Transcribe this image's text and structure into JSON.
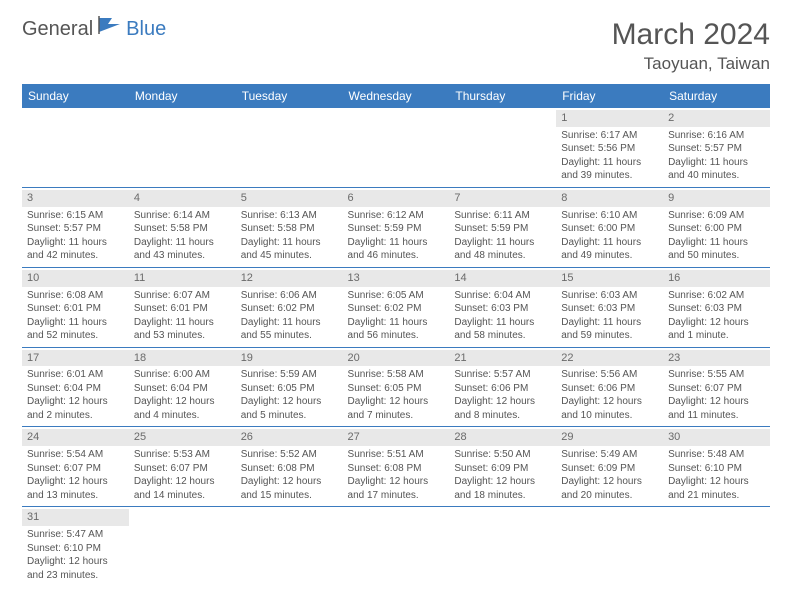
{
  "logo": {
    "general": "General",
    "blue": "Blue"
  },
  "title": "March 2024",
  "location": "Taoyuan, Taiwan",
  "colors": {
    "header_bg": "#3b7bbf",
    "header_fg": "#ffffff",
    "text": "#555555",
    "daynum_bg": "#e8e8e8",
    "row_border": "#3b7bbf"
  },
  "typography": {
    "title_fontsize": 30,
    "location_fontsize": 17,
    "header_fontsize": 12,
    "cell_fontsize": 10
  },
  "weekdays": [
    "Sunday",
    "Monday",
    "Tuesday",
    "Wednesday",
    "Thursday",
    "Friday",
    "Saturday"
  ],
  "weeks": [
    [
      null,
      null,
      null,
      null,
      null,
      {
        "day": "1",
        "sunrise": "Sunrise: 6:17 AM",
        "sunset": "Sunset: 5:56 PM",
        "daylight": "Daylight: 11 hours and 39 minutes."
      },
      {
        "day": "2",
        "sunrise": "Sunrise: 6:16 AM",
        "sunset": "Sunset: 5:57 PM",
        "daylight": "Daylight: 11 hours and 40 minutes."
      }
    ],
    [
      {
        "day": "3",
        "sunrise": "Sunrise: 6:15 AM",
        "sunset": "Sunset: 5:57 PM",
        "daylight": "Daylight: 11 hours and 42 minutes."
      },
      {
        "day": "4",
        "sunrise": "Sunrise: 6:14 AM",
        "sunset": "Sunset: 5:58 PM",
        "daylight": "Daylight: 11 hours and 43 minutes."
      },
      {
        "day": "5",
        "sunrise": "Sunrise: 6:13 AM",
        "sunset": "Sunset: 5:58 PM",
        "daylight": "Daylight: 11 hours and 45 minutes."
      },
      {
        "day": "6",
        "sunrise": "Sunrise: 6:12 AM",
        "sunset": "Sunset: 5:59 PM",
        "daylight": "Daylight: 11 hours and 46 minutes."
      },
      {
        "day": "7",
        "sunrise": "Sunrise: 6:11 AM",
        "sunset": "Sunset: 5:59 PM",
        "daylight": "Daylight: 11 hours and 48 minutes."
      },
      {
        "day": "8",
        "sunrise": "Sunrise: 6:10 AM",
        "sunset": "Sunset: 6:00 PM",
        "daylight": "Daylight: 11 hours and 49 minutes."
      },
      {
        "day": "9",
        "sunrise": "Sunrise: 6:09 AM",
        "sunset": "Sunset: 6:00 PM",
        "daylight": "Daylight: 11 hours and 50 minutes."
      }
    ],
    [
      {
        "day": "10",
        "sunrise": "Sunrise: 6:08 AM",
        "sunset": "Sunset: 6:01 PM",
        "daylight": "Daylight: 11 hours and 52 minutes."
      },
      {
        "day": "11",
        "sunrise": "Sunrise: 6:07 AM",
        "sunset": "Sunset: 6:01 PM",
        "daylight": "Daylight: 11 hours and 53 minutes."
      },
      {
        "day": "12",
        "sunrise": "Sunrise: 6:06 AM",
        "sunset": "Sunset: 6:02 PM",
        "daylight": "Daylight: 11 hours and 55 minutes."
      },
      {
        "day": "13",
        "sunrise": "Sunrise: 6:05 AM",
        "sunset": "Sunset: 6:02 PM",
        "daylight": "Daylight: 11 hours and 56 minutes."
      },
      {
        "day": "14",
        "sunrise": "Sunrise: 6:04 AM",
        "sunset": "Sunset: 6:03 PM",
        "daylight": "Daylight: 11 hours and 58 minutes."
      },
      {
        "day": "15",
        "sunrise": "Sunrise: 6:03 AM",
        "sunset": "Sunset: 6:03 PM",
        "daylight": "Daylight: 11 hours and 59 minutes."
      },
      {
        "day": "16",
        "sunrise": "Sunrise: 6:02 AM",
        "sunset": "Sunset: 6:03 PM",
        "daylight": "Daylight: 12 hours and 1 minute."
      }
    ],
    [
      {
        "day": "17",
        "sunrise": "Sunrise: 6:01 AM",
        "sunset": "Sunset: 6:04 PM",
        "daylight": "Daylight: 12 hours and 2 minutes."
      },
      {
        "day": "18",
        "sunrise": "Sunrise: 6:00 AM",
        "sunset": "Sunset: 6:04 PM",
        "daylight": "Daylight: 12 hours and 4 minutes."
      },
      {
        "day": "19",
        "sunrise": "Sunrise: 5:59 AM",
        "sunset": "Sunset: 6:05 PM",
        "daylight": "Daylight: 12 hours and 5 minutes."
      },
      {
        "day": "20",
        "sunrise": "Sunrise: 5:58 AM",
        "sunset": "Sunset: 6:05 PM",
        "daylight": "Daylight: 12 hours and 7 minutes."
      },
      {
        "day": "21",
        "sunrise": "Sunrise: 5:57 AM",
        "sunset": "Sunset: 6:06 PM",
        "daylight": "Daylight: 12 hours and 8 minutes."
      },
      {
        "day": "22",
        "sunrise": "Sunrise: 5:56 AM",
        "sunset": "Sunset: 6:06 PM",
        "daylight": "Daylight: 12 hours and 10 minutes."
      },
      {
        "day": "23",
        "sunrise": "Sunrise: 5:55 AM",
        "sunset": "Sunset: 6:07 PM",
        "daylight": "Daylight: 12 hours and 11 minutes."
      }
    ],
    [
      {
        "day": "24",
        "sunrise": "Sunrise: 5:54 AM",
        "sunset": "Sunset: 6:07 PM",
        "daylight": "Daylight: 12 hours and 13 minutes."
      },
      {
        "day": "25",
        "sunrise": "Sunrise: 5:53 AM",
        "sunset": "Sunset: 6:07 PM",
        "daylight": "Daylight: 12 hours and 14 minutes."
      },
      {
        "day": "26",
        "sunrise": "Sunrise: 5:52 AM",
        "sunset": "Sunset: 6:08 PM",
        "daylight": "Daylight: 12 hours and 15 minutes."
      },
      {
        "day": "27",
        "sunrise": "Sunrise: 5:51 AM",
        "sunset": "Sunset: 6:08 PM",
        "daylight": "Daylight: 12 hours and 17 minutes."
      },
      {
        "day": "28",
        "sunrise": "Sunrise: 5:50 AM",
        "sunset": "Sunset: 6:09 PM",
        "daylight": "Daylight: 12 hours and 18 minutes."
      },
      {
        "day": "29",
        "sunrise": "Sunrise: 5:49 AM",
        "sunset": "Sunset: 6:09 PM",
        "daylight": "Daylight: 12 hours and 20 minutes."
      },
      {
        "day": "30",
        "sunrise": "Sunrise: 5:48 AM",
        "sunset": "Sunset: 6:10 PM",
        "daylight": "Daylight: 12 hours and 21 minutes."
      }
    ],
    [
      {
        "day": "31",
        "sunrise": "Sunrise: 5:47 AM",
        "sunset": "Sunset: 6:10 PM",
        "daylight": "Daylight: 12 hours and 23 minutes."
      },
      null,
      null,
      null,
      null,
      null,
      null
    ]
  ]
}
